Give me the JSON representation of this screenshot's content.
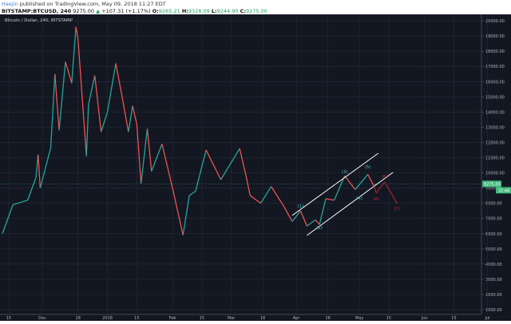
{
  "header": {
    "author": "Haejin",
    "published": "published on TradingView.com, May 09, 2018 11:27 EDT",
    "symbol": "BITSTAMP:BTCUSD, 240",
    "last": "9275.00",
    "change": "+107.31 (+1.17%)",
    "o_label": "O:",
    "o": "9265.21",
    "h_label": "H:",
    "h": "9328.09",
    "l_label": "L:",
    "l": "9244.90",
    "c_label": "C:",
    "c": "9275.00"
  },
  "chart_data": {
    "type": "line",
    "title": "Bitcoin / Dollar, 240, BITSTAMP",
    "ylim": [
      1000,
      20000
    ],
    "yticks": [
      "20000.00",
      "19000.00",
      "18000.00",
      "17000.00",
      "16000.00",
      "15000.00",
      "14000.00",
      "13000.00",
      "12000.00",
      "11000.00",
      "10000.00",
      "9000.00",
      "8000.00",
      "7000.00",
      "6000.00",
      "5000.00",
      "4000.00",
      "3000.00",
      "2000.00",
      "1000.00"
    ],
    "xticks": [
      {
        "label": "15",
        "date": "2017-11-15"
      },
      {
        "label": "Dec",
        "date": "2017-12-01"
      },
      {
        "label": "18",
        "date": "2017-12-18"
      },
      {
        "label": "2018",
        "date": "2018-01-01"
      },
      {
        "label": "15",
        "date": "2018-01-15"
      },
      {
        "label": "Feb",
        "date": "2018-02-01"
      },
      {
        "label": "15",
        "date": "2018-02-15"
      },
      {
        "label": "Mar",
        "date": "2018-03-01"
      },
      {
        "label": "16",
        "date": "2018-03-16"
      },
      {
        "label": "Apr",
        "date": "2018-04-01"
      },
      {
        "label": "16",
        "date": "2018-04-16"
      },
      {
        "label": "May",
        "date": "2018-05-01"
      },
      {
        "label": "15",
        "date": "2018-05-15"
      },
      {
        "label": "Jun",
        "date": "2018-06-01"
      },
      {
        "label": "15",
        "date": "2018-06-15"
      },
      {
        "label": "Jul",
        "date": "2018-07-01"
      }
    ],
    "grid": true,
    "colors": {
      "up": "#26a69a",
      "down": "#ef5350",
      "bg": "#131722",
      "wave": "#4fc3c8",
      "abc": "#c0262c",
      "channel": "#ffffff",
      "price_tag": "#3dbb7a"
    },
    "series": [
      {
        "points": [
          [
            "2017-11-12",
            6000
          ],
          [
            "2017-11-17",
            7900
          ],
          [
            "2017-11-24",
            8200
          ],
          [
            "2017-11-28",
            9700
          ],
          [
            "2017-11-29",
            11200
          ],
          [
            "2017-11-30",
            9000
          ],
          [
            "2017-12-05",
            11650
          ],
          [
            "2017-12-07",
            16500
          ],
          [
            "2017-12-09",
            12800
          ],
          [
            "2017-12-12",
            17300
          ],
          [
            "2017-12-15",
            15900
          ],
          [
            "2017-12-17",
            19600
          ],
          [
            "2017-12-18",
            18800
          ],
          [
            "2017-12-22",
            11100
          ],
          [
            "2017-12-23",
            14500
          ],
          [
            "2017-12-26",
            16400
          ],
          [
            "2017-12-29",
            12700
          ],
          [
            "2018-01-01",
            14000
          ],
          [
            "2018-01-05",
            17200
          ],
          [
            "2018-01-08",
            15000
          ],
          [
            "2018-01-11",
            12700
          ],
          [
            "2018-01-13",
            14400
          ],
          [
            "2018-01-15",
            13200
          ],
          [
            "2018-01-17",
            9300
          ],
          [
            "2018-01-20",
            12900
          ],
          [
            "2018-01-22",
            10100
          ],
          [
            "2018-01-27",
            11900
          ],
          [
            "2018-02-01",
            9000
          ],
          [
            "2018-02-06",
            5900
          ],
          [
            "2018-02-09",
            8500
          ],
          [
            "2018-02-12",
            8800
          ],
          [
            "2018-02-17",
            11500
          ],
          [
            "2018-02-24",
            9550
          ],
          [
            "2018-03-05",
            11600
          ],
          [
            "2018-03-08",
            9800
          ],
          [
            "2018-03-10",
            8500
          ],
          [
            "2018-03-15",
            8000
          ],
          [
            "2018-03-20",
            9100
          ],
          [
            "2018-03-26",
            7800
          ],
          [
            "2018-03-30",
            6800
          ],
          [
            "2018-04-03",
            7500
          ],
          [
            "2018-04-06",
            6500
          ],
          [
            "2018-04-10",
            6900
          ],
          [
            "2018-04-12",
            6600
          ],
          [
            "2018-04-15",
            8300
          ],
          [
            "2018-04-19",
            8200
          ],
          [
            "2018-04-24",
            9800
          ],
          [
            "2018-04-29",
            8900
          ],
          [
            "2018-05-05",
            9900
          ],
          [
            "2018-05-08",
            9100
          ],
          [
            "2018-05-09",
            9275
          ]
        ]
      }
    ],
    "last_price": "9275.00",
    "countdown": "32:46",
    "channel": [
      {
        "from": [
          "2018-03-30",
          7195
        ],
        "to": [
          "2018-05-10",
          11290
        ]
      },
      {
        "from": [
          "2018-04-06",
          5883
        ],
        "to": [
          "2018-05-17",
          10030
        ]
      }
    ],
    "wave_labels": [
      {
        "text": "(1)",
        "date": "2018-04-03",
        "price": 7825
      },
      {
        "text": "(2)",
        "date": "2018-04-12",
        "price": 6400
      },
      {
        "text": "(3)",
        "date": "2018-04-24",
        "price": 10080
      },
      {
        "text": "(4)",
        "date": "2018-05-01",
        "price": 8350
      },
      {
        "text": "(5)",
        "date": "2018-05-05",
        "price": 10400
      }
    ],
    "abc_path": [
      [
        "2018-05-08",
        9190
      ],
      [
        "2018-05-09",
        8665
      ],
      [
        "2018-05-13",
        9400
      ],
      [
        "2018-05-19",
        7980
      ]
    ],
    "abc_labels": [
      {
        "text": "(A)",
        "date": "2018-05-09",
        "price": 8300
      },
      {
        "text": "(B)",
        "date": "2018-05-13",
        "price": 9770
      },
      {
        "text": "(C)",
        "date": "2018-05-19",
        "price": 7670
      }
    ]
  }
}
